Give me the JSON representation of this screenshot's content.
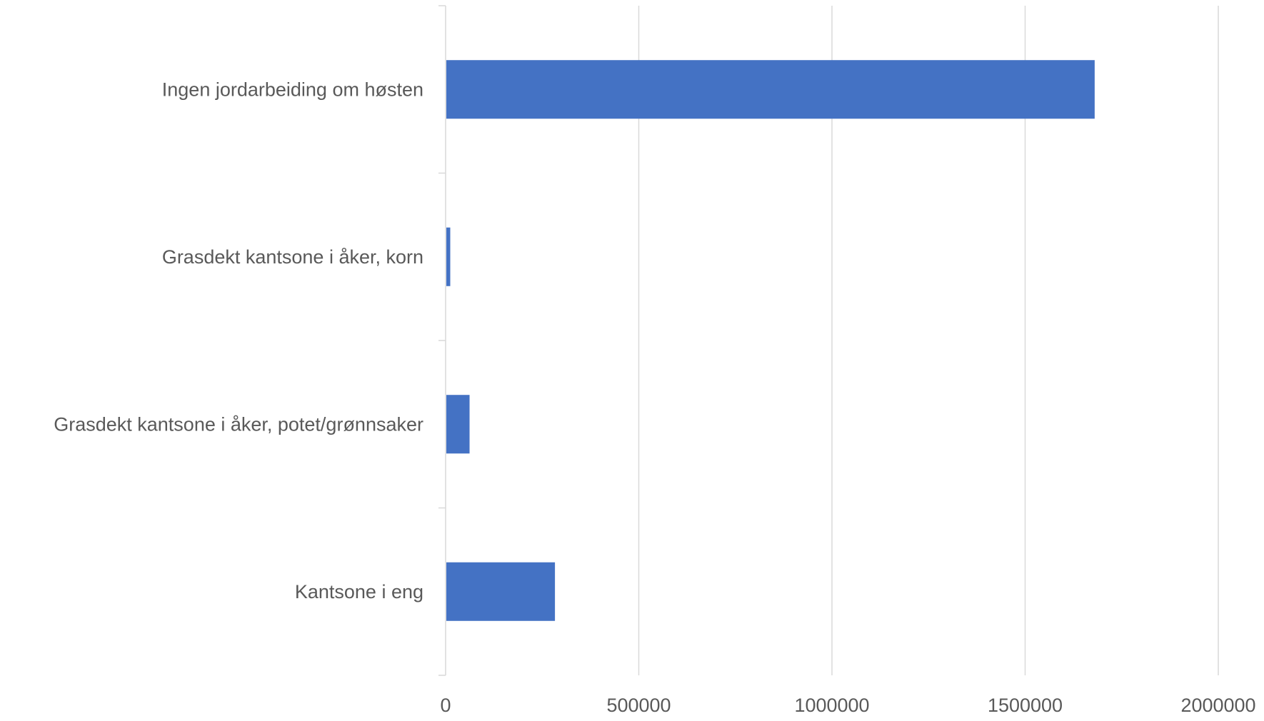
{
  "chart_data": {
    "type": "bar",
    "orientation": "horizontal",
    "categories": [
      "Ingen jordarbeiding om høsten",
      "Grasdekt kantsone i åker, korn",
      "Grasdekt kantsone i åker, potet/grønnsaker",
      "Kantsone i eng"
    ],
    "values": [
      1680000,
      12000,
      62000,
      283000
    ],
    "xlim": [
      0,
      2000000
    ],
    "x_ticks": [
      0,
      500000,
      1000000,
      1500000,
      2000000
    ],
    "x_tick_labels": [
      "0",
      "500000",
      "1000000",
      "1500000",
      "2000000"
    ],
    "title": "",
    "xlabel": "",
    "ylabel": "",
    "grid": "vertical",
    "legend": "none",
    "bar_color": "#4472C4"
  }
}
